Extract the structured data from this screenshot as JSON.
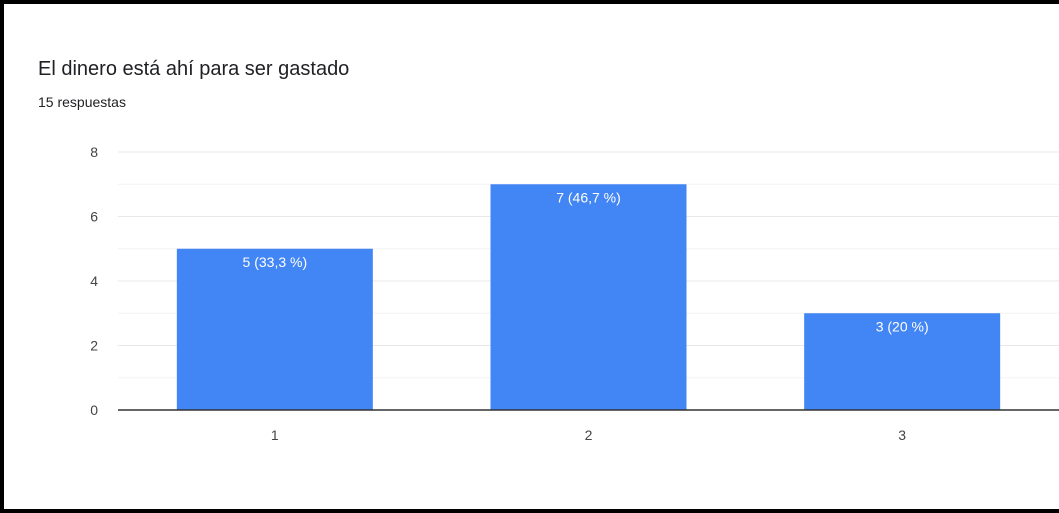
{
  "title": "El dinero está ahí para ser gastado",
  "subtitle": "15 respuestas",
  "colors": {
    "bar": "#4285f4",
    "gridline": "#e8e8e8",
    "baseline": "#333333",
    "text": "#202124",
    "data_label": "#ffffff"
  },
  "chart_data": {
    "type": "bar",
    "categories": [
      "1",
      "2",
      "3"
    ],
    "values": [
      5,
      7,
      3
    ],
    "data_labels": [
      "5 (33,3 %)",
      "7 (46,7 %)",
      "3 (20 %)"
    ],
    "y_ticks": [
      "0",
      "2",
      "4",
      "6",
      "8"
    ],
    "ylim": [
      0,
      8
    ],
    "grid": true,
    "legend": "none"
  }
}
